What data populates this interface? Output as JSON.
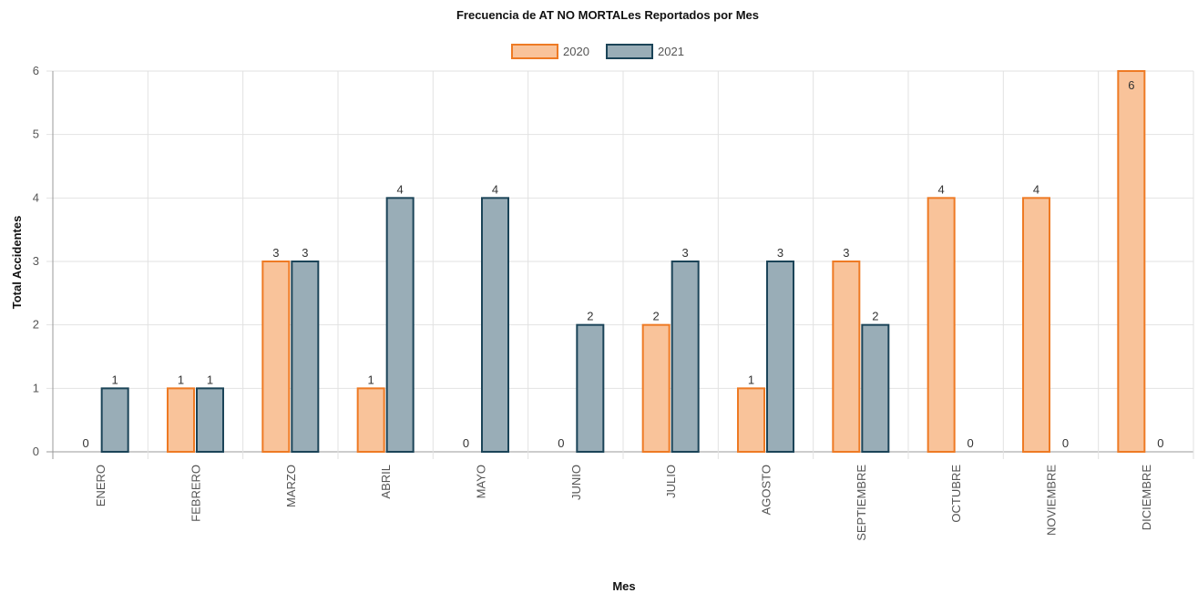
{
  "chart_data": {
    "type": "bar",
    "title": "Frecuencia de AT NO MORTALes Reportados por Mes",
    "xlabel": "Mes",
    "ylabel": "Total Accidentes",
    "ylim": [
      0,
      6
    ],
    "yticks": [
      "0",
      "1",
      "2",
      "3",
      "4",
      "5",
      "6"
    ],
    "grid": true,
    "legend_position": "top",
    "categories": [
      "ENERO",
      "FEBRERO",
      "MARZO",
      "ABRIL",
      "MAYO",
      "JUNIO",
      "JULIO",
      "AGOSTO",
      "SEPTIEMBRE",
      "OCTUBRE",
      "NOVIEMBRE",
      "DICIEMBRE"
    ],
    "series": [
      {
        "name": "2020",
        "values": [
          0,
          1,
          3,
          1,
          0,
          0,
          2,
          1,
          3,
          4,
          4,
          6
        ],
        "fill": "#f9c39a",
        "stroke": "#ee7a24"
      },
      {
        "name": "2021",
        "values": [
          1,
          1,
          3,
          4,
          4,
          2,
          3,
          3,
          2,
          0,
          0,
          0
        ],
        "fill": "#99adb7",
        "stroke": "#1b4458"
      }
    ]
  }
}
